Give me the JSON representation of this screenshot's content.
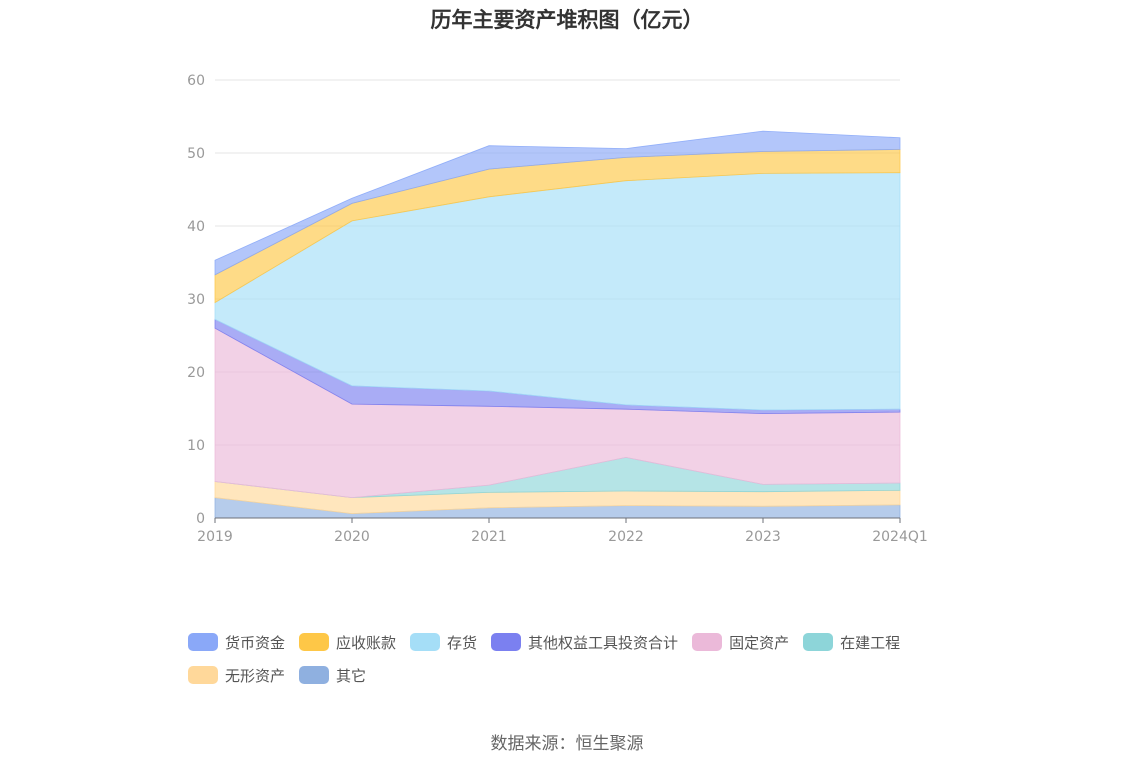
{
  "chart_data": {
    "type": "area",
    "stacked": true,
    "title": "历年主要资产堆积图（亿元）",
    "categories": [
      "2019",
      "2020",
      "2021",
      "2022",
      "2023",
      "2024Q1"
    ],
    "ylim": [
      0,
      60
    ],
    "yticks": [
      0,
      10,
      20,
      30,
      40,
      50,
      60
    ],
    "grid": true,
    "legend_position": "bottom",
    "series": [
      {
        "name": "其它",
        "color": "#8fb0e0",
        "values": [
          2.8,
          0.6,
          1.4,
          1.7,
          1.6,
          1.8
        ]
      },
      {
        "name": "无形资产",
        "color": "#ffd89a",
        "values": [
          2.2,
          2.2,
          2.1,
          2.0,
          2.0,
          2.0
        ]
      },
      {
        "name": "在建工程",
        "color": "#8dd5d9",
        "values": [
          0.0,
          0.0,
          1.0,
          4.6,
          1.0,
          1.0
        ]
      },
      {
        "name": "固定资产",
        "color": "#ebb9d9",
        "values": [
          21.0,
          12.8,
          10.8,
          6.6,
          9.7,
          9.7
        ]
      },
      {
        "name": "其他权益工具投资合计",
        "color": "#7b80f0",
        "values": [
          1.2,
          2.5,
          2.1,
          0.6,
          0.5,
          0.4
        ]
      },
      {
        "name": "存货",
        "color": "#a5def7",
        "values": [
          2.3,
          22.6,
          26.6,
          30.7,
          32.4,
          32.4
        ]
      },
      {
        "name": "应收账款",
        "color": "#fec747",
        "values": [
          3.8,
          2.4,
          3.8,
          3.2,
          3.0,
          3.2
        ]
      },
      {
        "name": "货币资金",
        "color": "#8aa8f8",
        "values": [
          2.0,
          0.7,
          3.2,
          1.2,
          2.8,
          1.6
        ]
      }
    ],
    "legend_order": [
      "货币资金",
      "应收账款",
      "存货",
      "其他权益工具投资合计",
      "固定资产",
      "在建工程",
      "无形资产",
      "其它"
    ]
  },
  "source": "数据来源：恒生聚源"
}
